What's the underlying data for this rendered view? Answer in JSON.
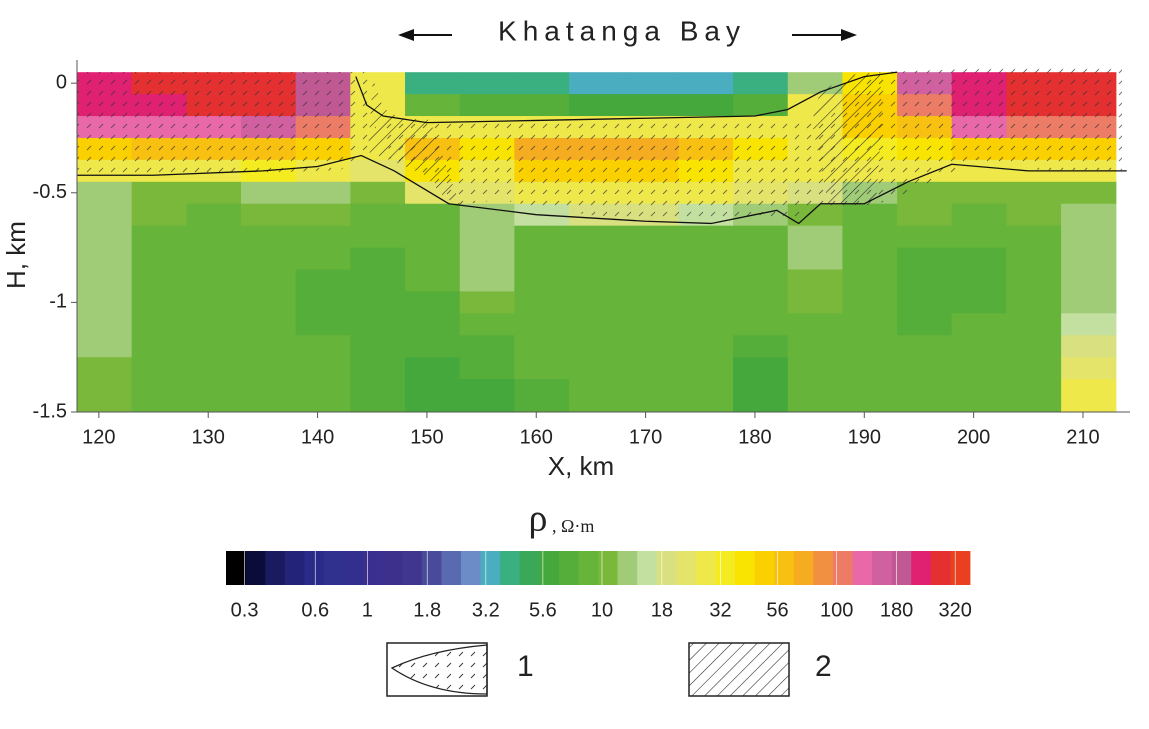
{
  "chart_data": {
    "type": "heatmap",
    "title": "Khatanga Bay",
    "x_label": "X, km",
    "y_label": "H, km",
    "xlim": [
      118,
      214.3
    ],
    "ylim": [
      -1.5,
      0.06
    ],
    "xticks": [
      120,
      130,
      140,
      150,
      160,
      170,
      180,
      190,
      200,
      210
    ],
    "yticks": [
      0,
      -0.5,
      -1,
      -1.5
    ],
    "xbins": [
      118,
      123,
      128,
      133,
      138,
      143,
      148,
      153,
      158,
      163,
      168,
      173,
      178,
      183,
      188,
      193,
      198,
      203,
      208,
      213
    ],
    "ybins": [
      0.05,
      -0.05,
      -0.15,
      -0.25,
      -0.35,
      -0.45,
      -0.55,
      -0.65,
      -0.75,
      -0.85,
      -0.95,
      -1.05,
      -1.15,
      -1.25,
      -1.35,
      -1.45,
      -1.55
    ],
    "z": [
      [
        250,
        260,
        270,
        260,
        200,
        30,
        4,
        4,
        4,
        3.5,
        3.5,
        3.5,
        4,
        12,
        40,
        150,
        250,
        280,
        280
      ],
      [
        240,
        250,
        260,
        260,
        180,
        30,
        8,
        7,
        7,
        6,
        6,
        6,
        7,
        30,
        50,
        100,
        230,
        260,
        260
      ],
      [
        120,
        130,
        130,
        150,
        100,
        30,
        30,
        28,
        30,
        30,
        30,
        30,
        30,
        30,
        45,
        60,
        120,
        110,
        100
      ],
      [
        50,
        55,
        60,
        60,
        50,
        30,
        60,
        40,
        70,
        70,
        70,
        60,
        40,
        30,
        35,
        40,
        50,
        45,
        45
      ],
      [
        28,
        30,
        30,
        32,
        30,
        25,
        40,
        30,
        45,
        50,
        45,
        40,
        30,
        30,
        28,
        28,
        30,
        30,
        28
      ],
      [
        12,
        11,
        11,
        12,
        14,
        10,
        25,
        25,
        30,
        30,
        30,
        28,
        25,
        20,
        12,
        11,
        11,
        11,
        11
      ],
      [
        12,
        10,
        9,
        10,
        10,
        8,
        9,
        12,
        15,
        20,
        18,
        16,
        12,
        10,
        9,
        10,
        9,
        10,
        12
      ],
      [
        14,
        9,
        8,
        9,
        8,
        8,
        8,
        12,
        9,
        8,
        9,
        8,
        9,
        12,
        8,
        8,
        8,
        9,
        14
      ],
      [
        14,
        8,
        8,
        8,
        8,
        7,
        8,
        12,
        8,
        8,
        8,
        8,
        8,
        12,
        8,
        7,
        7,
        8,
        12
      ],
      [
        13,
        8,
        8,
        8,
        7,
        7,
        8,
        14,
        9,
        8,
        8,
        8,
        8,
        11,
        8,
        7,
        7,
        8,
        12
      ],
      [
        12,
        8,
        8,
        8,
        7,
        7,
        7,
        10,
        9,
        8,
        8,
        8,
        8,
        10,
        8,
        7,
        7,
        8,
        14
      ],
      [
        12,
        8,
        8,
        8,
        7,
        7,
        7,
        8,
        8,
        8,
        8,
        8,
        8,
        9,
        8,
        7,
        8,
        8,
        16
      ],
      [
        12,
        8,
        8,
        8,
        8,
        7,
        7,
        7,
        8,
        8,
        8,
        8,
        7,
        8,
        8,
        8,
        8,
        8,
        18
      ],
      [
        11,
        8,
        8,
        8,
        8,
        7,
        6.5,
        7,
        8,
        8,
        8,
        8,
        6,
        8,
        8,
        8,
        8,
        8,
        25
      ],
      [
        10,
        9,
        8,
        8,
        8,
        7,
        6.5,
        6.5,
        7,
        8,
        8,
        8,
        6,
        8,
        8,
        8,
        8,
        8,
        30
      ],
      [
        10,
        9,
        8,
        8,
        8,
        7,
        6.5,
        6.5,
        7,
        8,
        8,
        8,
        6,
        8,
        8,
        8,
        8,
        8,
        30
      ]
    ],
    "boundaries": [
      {
        "x": [
          143.5,
          144.5,
          146,
          150,
          160,
          170,
          180,
          183,
          186,
          190,
          193
        ],
        "y": [
          0.03,
          -0.1,
          -0.15,
          -0.18,
          -0.17,
          -0.16,
          -0.15,
          -0.12,
          -0.04,
          0.03,
          0.05
        ]
      },
      {
        "x": [
          118,
          125,
          135,
          140,
          144,
          147,
          152,
          160,
          170,
          176,
          180,
          182,
          184,
          186,
          190,
          194,
          198,
          205,
          214
        ],
        "y": [
          -0.42,
          -0.42,
          -0.4,
          -0.38,
          -0.33,
          -0.4,
          -0.55,
          -0.6,
          -0.63,
          -0.64,
          -0.6,
          -0.58,
          -0.64,
          -0.55,
          -0.55,
          -0.45,
          -0.37,
          -0.4,
          -0.4
        ]
      }
    ],
    "colorbar": {
      "symbol": "ρ",
      "unit": ", Ω·m",
      "log": true,
      "clim": [
        0.25,
        370
      ],
      "colors": [
        "#000000",
        "#0c0c3a",
        "#1a1a5e",
        "#23237a",
        "#2a2a88",
        "#30308e",
        "#332f8f",
        "#3a2f8e",
        "#3d308c",
        "#41368f",
        "#4a4a9a",
        "#5a6ab0",
        "#6c8cc8",
        "#4aaec0",
        "#3ab080",
        "#3aa858",
        "#44a83c",
        "#56ae3a",
        "#66b43a",
        "#7ab83c",
        "#a0cc78",
        "#c4e0a0",
        "#d8e080",
        "#e4e46a",
        "#eee84a",
        "#f4ec20",
        "#f8e400",
        "#fad000",
        "#f8c010",
        "#f6ac20",
        "#f09040",
        "#ec7c66",
        "#e868a8",
        "#d060a0",
        "#c05894",
        "#e02070",
        "#e43030",
        "#e84020"
      ],
      "ticks": [
        0.3,
        0.6,
        1,
        1.8,
        3.2,
        5.6,
        10,
        18,
        32,
        56,
        100,
        180,
        320
      ]
    },
    "legend": [
      "1",
      "2"
    ]
  }
}
